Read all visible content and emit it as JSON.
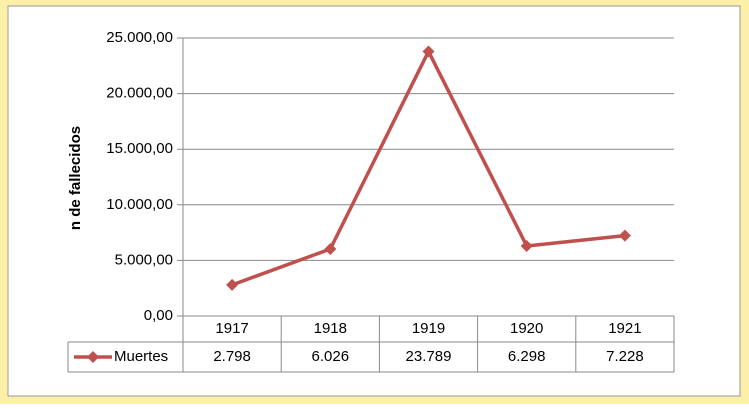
{
  "chart_data": {
    "type": "line",
    "y_label": "n de fallecidos",
    "categories": [
      "1917",
      "1918",
      "1919",
      "1920",
      "1921"
    ],
    "series": [
      {
        "name": "Muertes",
        "color": "#c0504d",
        "values": [
          2798,
          6026,
          23789,
          6298,
          7228
        ],
        "value_labels": [
          "2.798",
          "6.026",
          "23.789",
          "6.298",
          "7.228"
        ]
      }
    ],
    "ylim": [
      0,
      25000
    ],
    "yticks": [
      {
        "value": 0,
        "label": "0,00"
      },
      {
        "value": 5000,
        "label": "5.000,00"
      },
      {
        "value": 10000,
        "label": "10.000,00"
      },
      {
        "value": 15000,
        "label": "15.000,00"
      },
      {
        "value": 20000,
        "label": "20.000,00"
      },
      {
        "value": 25000,
        "label": "25.000,00"
      }
    ],
    "grid": true
  }
}
